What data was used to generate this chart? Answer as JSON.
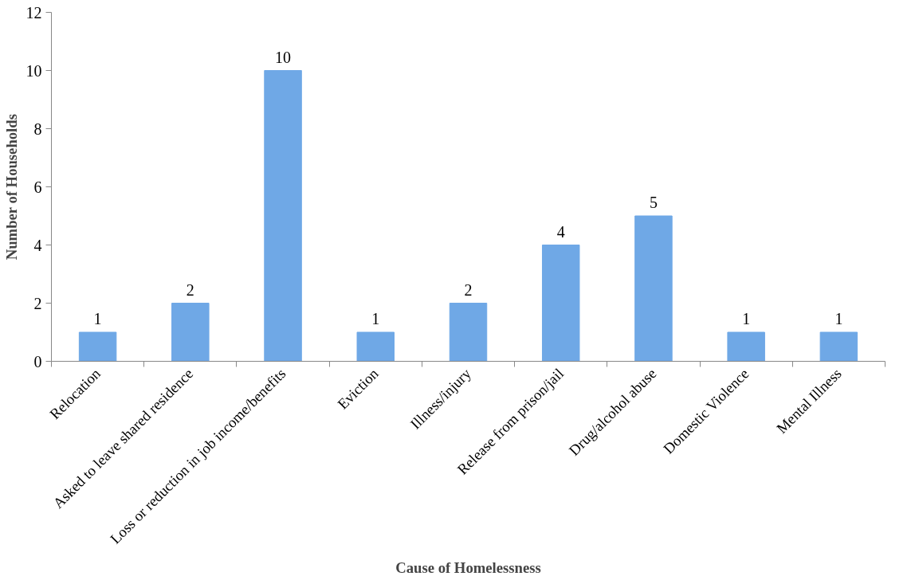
{
  "chart_data": {
    "type": "bar",
    "xlabel": "Cause of Homelessness",
    "ylabel": "Number of Households",
    "categories": [
      "Relocation",
      "Asked to leave shared residence",
      "Loss or reduction in job income/benefits",
      "Eviction",
      "Illness/injury",
      "Release from prison/jail",
      "Drug/alcohol abuse",
      "Domestic Violence",
      "Mental Illness"
    ],
    "values": [
      1,
      2,
      10,
      1,
      2,
      4,
      5,
      1,
      1
    ],
    "color": "#6fa8e6",
    "ylim": [
      0,
      12
    ],
    "yticks": [
      0,
      2,
      4,
      6,
      8,
      10,
      12
    ],
    "data_labels": true
  }
}
